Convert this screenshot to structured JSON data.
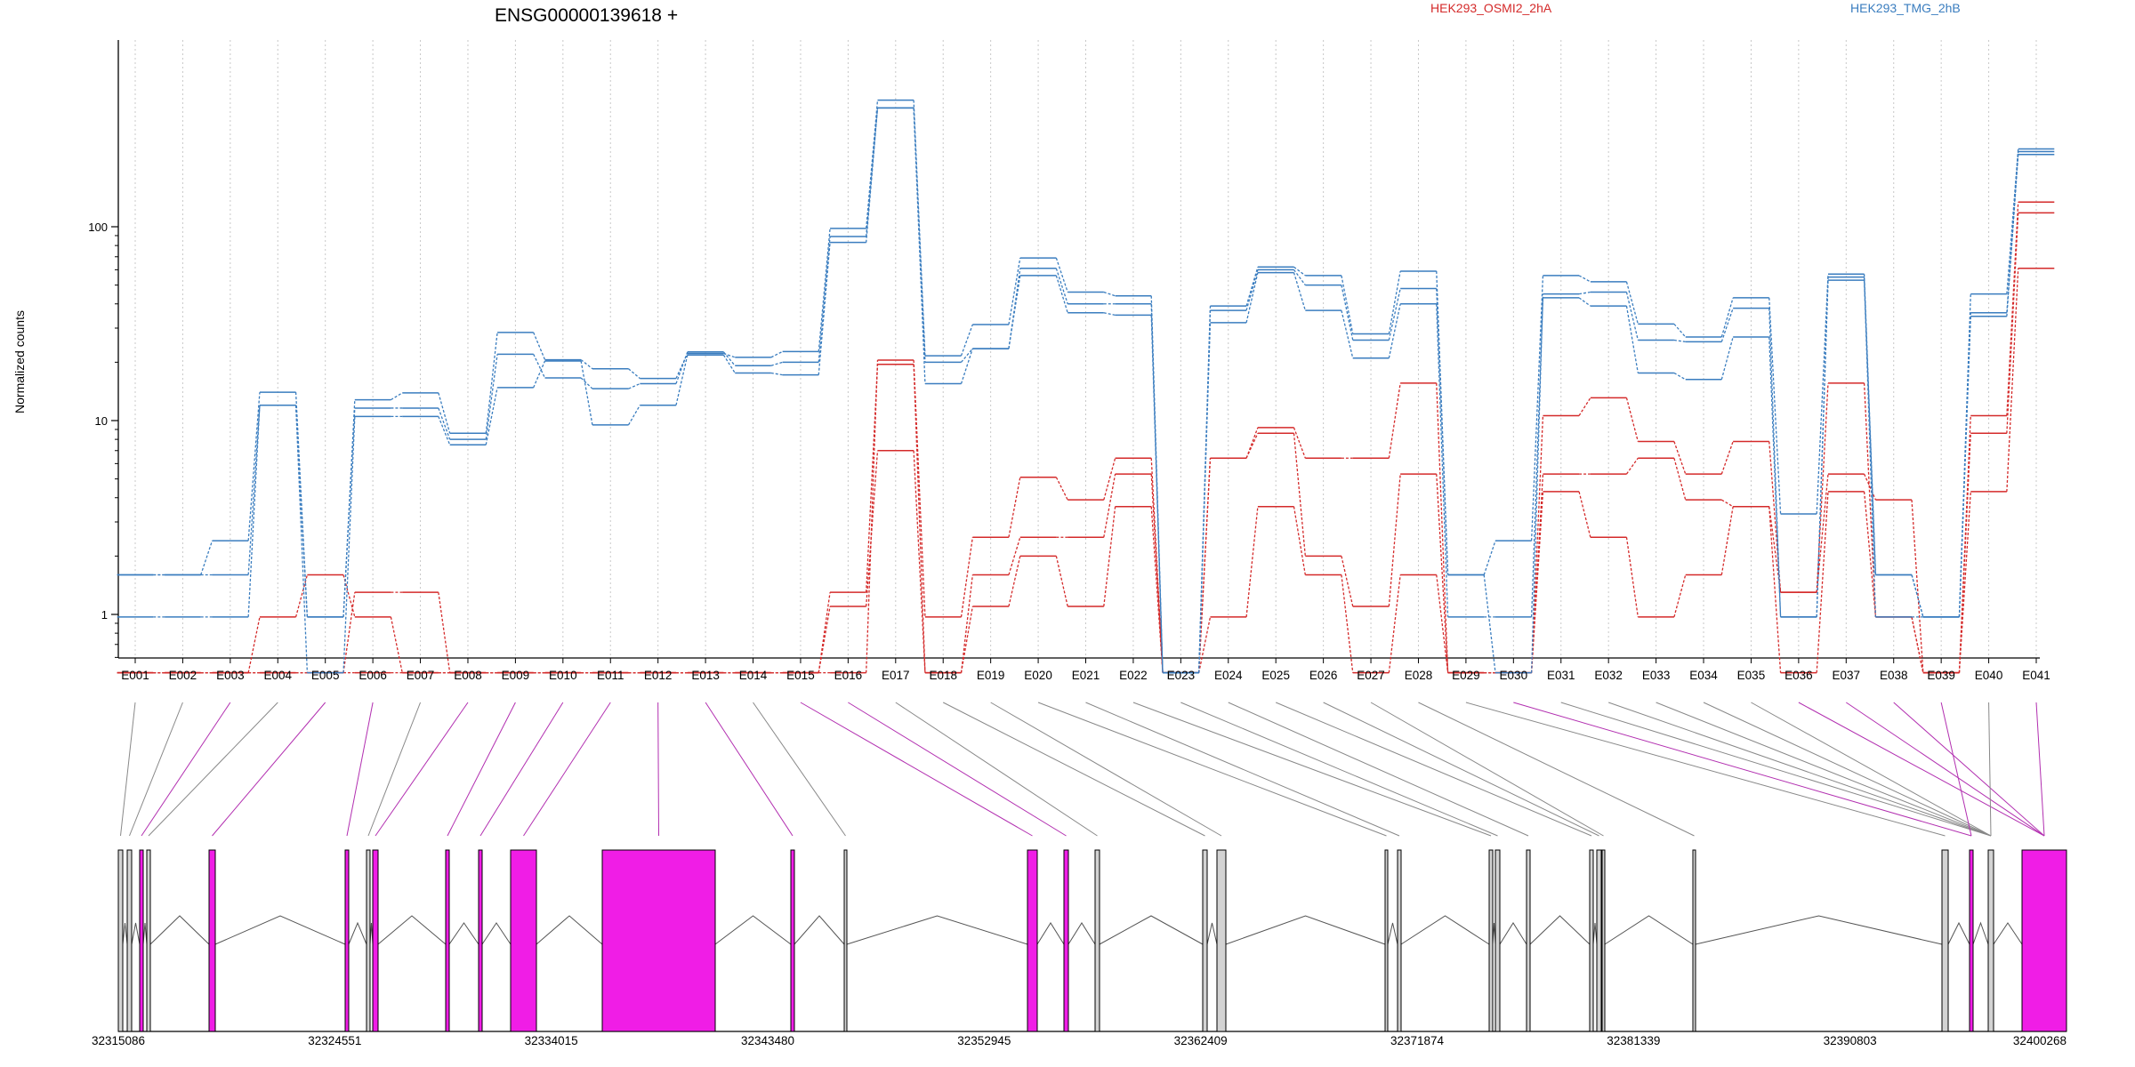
{
  "colors": {
    "series_a": "#d42a2a",
    "series_b": "#3a7dbf",
    "exon_highlight": "#f01de6",
    "exon_normal": "#d3d3d3",
    "axis": "#000000"
  },
  "chart_data": {
    "type": "line",
    "title": "ENSG00000139618 +",
    "ylabel": "Normalized counts",
    "yscale": "log",
    "ylim": [
      0.5,
      500
    ],
    "yticks": [
      {
        "value": 1,
        "label": "1"
      },
      {
        "value": 10,
        "label": "10"
      },
      {
        "value": 100,
        "label": "100"
      }
    ],
    "grid": "vertical",
    "legend": [
      {
        "label": "HEK293_OSMI2_2hA",
        "color": "#d42a2a",
        "position": "top"
      },
      {
        "label": "HEK293_TMG_2hB",
        "color": "#3a7dbf",
        "position": "top-right"
      }
    ],
    "categories": [
      "E001",
      "E002",
      "E003",
      "E004",
      "E005",
      "E006",
      "E007",
      "E008",
      "E009",
      "E010",
      "E011",
      "E012",
      "E013",
      "E014",
      "E015",
      "E016",
      "E017",
      "E018",
      "E019",
      "E020",
      "E021",
      "E022",
      "E023",
      "E024",
      "E025",
      "E026",
      "E027",
      "E028",
      "E029",
      "E030",
      "E031",
      "E032",
      "E033",
      "E034",
      "E035",
      "E036",
      "E037",
      "E038",
      "E039",
      "E040",
      "E041"
    ],
    "series": [
      {
        "color": "#d42a2a",
        "values": [
          0.5,
          0.5,
          0.5,
          0.97,
          1.6,
          0.97,
          0.5,
          0.5,
          0.5,
          0.5,
          0.5,
          0.5,
          0.5,
          0.5,
          0.5,
          1.1,
          7.0,
          0.5,
          1.1,
          2.0,
          1.1,
          3.6,
          0.5,
          0.97,
          3.6,
          1.6,
          0.5,
          1.6,
          0.5,
          0.5,
          4.3,
          2.5,
          0.97,
          1.6,
          3.6,
          0.5,
          4.3,
          0.97,
          0.5,
          4.3,
          61
        ]
      },
      {
        "color": "#d42a2a",
        "values": [
          0.5,
          0.5,
          0.5,
          0.5,
          0.5,
          1.3,
          1.3,
          0.5,
          0.5,
          0.5,
          0.5,
          0.5,
          0.5,
          0.5,
          0.5,
          1.3,
          19.5,
          0.5,
          1.6,
          2.5,
          2.5,
          5.3,
          0.5,
          6.4,
          8.6,
          2.0,
          1.1,
          5.3,
          0.5,
          0.5,
          5.3,
          5.3,
          6.4,
          3.9,
          3.6,
          1.3,
          5.3,
          3.9,
          0.5,
          8.6,
          118
        ]
      },
      {
        "color": "#d42a2a",
        "values": [
          0.5,
          0.5,
          0.5,
          0.5,
          0.5,
          0.5,
          0.5,
          0.5,
          0.5,
          0.5,
          0.5,
          0.5,
          0.5,
          0.5,
          0.5,
          0.5,
          20.5,
          0.97,
          2.5,
          5.1,
          3.9,
          6.4,
          0.5,
          6.4,
          9.2,
          6.4,
          6.4,
          15.6,
          0.5,
          0.5,
          10.6,
          13.1,
          7.8,
          5.3,
          7.8,
          1.3,
          15.6,
          0.97,
          0.5,
          10.6,
          134
        ]
      },
      {
        "color": "#3a7dbf",
        "values": [
          0.97,
          0.97,
          0.97,
          12.0,
          0.5,
          10.5,
          10.5,
          7.5,
          14.8,
          20.3,
          9.5,
          12.0,
          21.8,
          17.6,
          17.2,
          83,
          410,
          15.5,
          23.5,
          56,
          36,
          35,
          0.5,
          32,
          58,
          37,
          21,
          40,
          0.97,
          0.97,
          43,
          39,
          17.6,
          16.3,
          27,
          0.97,
          53,
          1.6,
          0.97,
          34.5,
          236
        ]
      },
      {
        "color": "#3a7dbf",
        "values": [
          1.6,
          1.6,
          1.6,
          12.0,
          0.97,
          11.6,
          11.6,
          8.0,
          22.0,
          16.6,
          14.6,
          15.5,
          22.6,
          19.2,
          20.0,
          89,
          410,
          20.0,
          23.5,
          61,
          40,
          40,
          0.5,
          37,
          60,
          50,
          26,
          48,
          1.6,
          0.5,
          45,
          46,
          26,
          25.5,
          38,
          0.97,
          55,
          0.97,
          0.97,
          36,
          244
        ]
      },
      {
        "color": "#3a7dbf",
        "values": [
          1.6,
          1.6,
          2.4,
          14.0,
          0.97,
          12.8,
          13.9,
          8.6,
          28.5,
          20.6,
          18.5,
          16.5,
          22.2,
          21.2,
          22.7,
          98,
          450,
          21.6,
          31.3,
          69,
          46,
          44,
          0.5,
          39,
          62,
          56,
          28,
          59,
          1.6,
          2.4,
          56,
          52,
          31.5,
          27,
          43,
          3.3,
          57,
          1.6,
          0.97,
          45,
          252
        ]
      }
    ]
  },
  "gene_model": {
    "coord_labels": [
      "32315086",
      "32324551",
      "32334015",
      "32343480",
      "32352945",
      "32362409",
      "32371874",
      "32381339",
      "32390803",
      "32400268"
    ]
  }
}
